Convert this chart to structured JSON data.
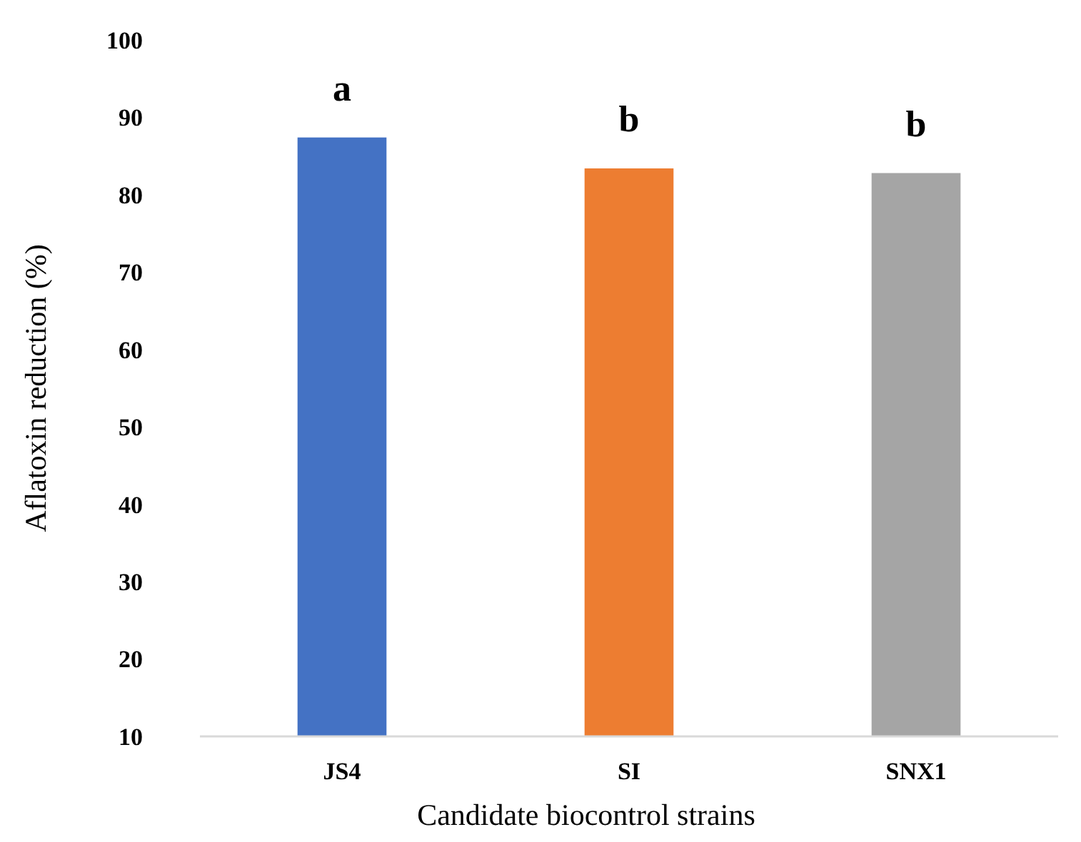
{
  "chart_data": {
    "type": "bar",
    "xlabel": "Candidate biocontrol strains",
    "ylabel": "Aflatoxin reduction (%)",
    "categories": [
      "JS4",
      "SI",
      "SNX1"
    ],
    "values": [
      87.4,
      83.4,
      82.8
    ],
    "colors": [
      "#4472c4",
      "#ed7d31",
      "#a5a5a5"
    ],
    "ylim": [
      10,
      100
    ],
    "yticks": [
      10,
      20,
      30,
      40,
      50,
      60,
      70,
      80,
      90,
      100
    ],
    "grid": false,
    "annotations": [
      "a",
      "b",
      "b"
    ]
  }
}
